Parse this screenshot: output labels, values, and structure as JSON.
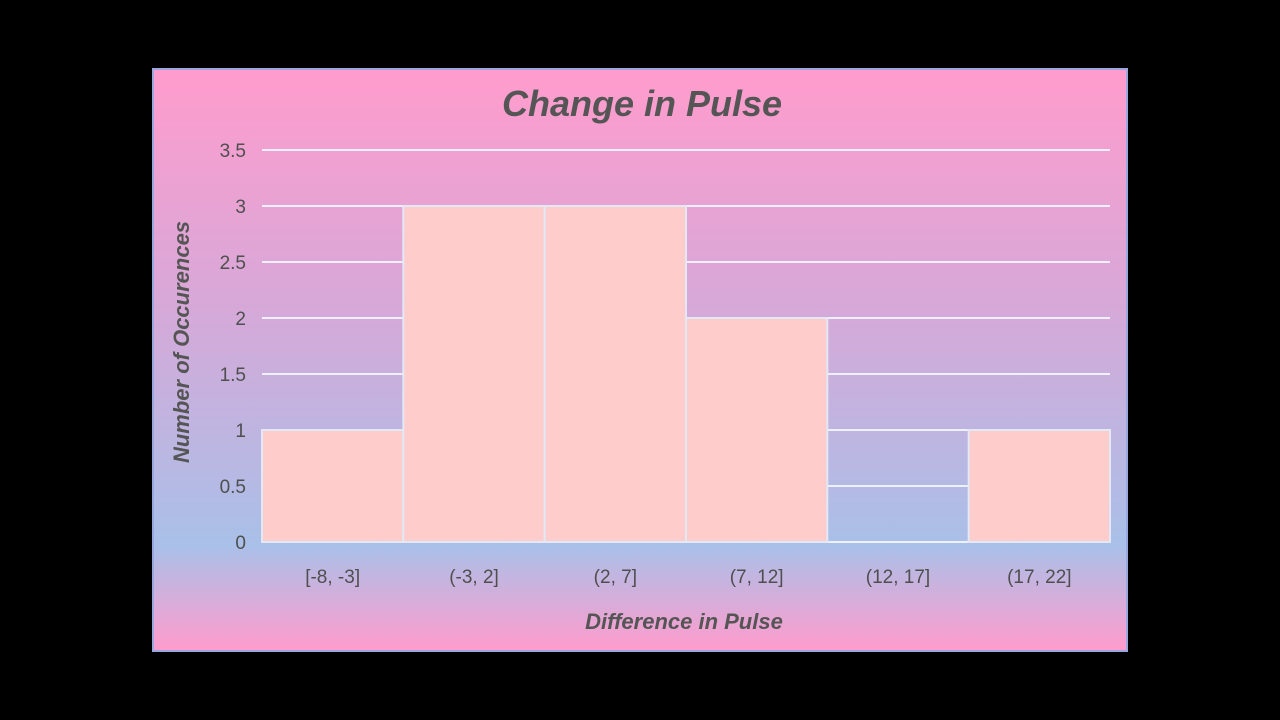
{
  "chart_data": {
    "type": "bar",
    "title": "Change in Pulse",
    "xlabel": "Difference in Pulse",
    "ylabel": "Number of Occurences",
    "categories": [
      "[-8, -3]",
      "(-3, 2]",
      "(2, 7]",
      "(7, 12]",
      "(12, 17]",
      "(17, 22]"
    ],
    "values": [
      1,
      3,
      3,
      2,
      0,
      1
    ],
    "ylim": [
      0,
      3.5
    ],
    "yticks": [
      0,
      0.5,
      1,
      1.5,
      2,
      2.5,
      3,
      3.5
    ],
    "ytick_labels": [
      "0",
      "0.5",
      "1",
      "1.5",
      "2",
      "2.5",
      "3",
      "3.5"
    ],
    "grid": true,
    "legend": "none",
    "colors": {
      "bar": "#ffcccc",
      "bar_border": "#e3e8f5",
      "gridline": "#eef0fb",
      "text": "#4f4f4f",
      "title": "#555555"
    }
  }
}
